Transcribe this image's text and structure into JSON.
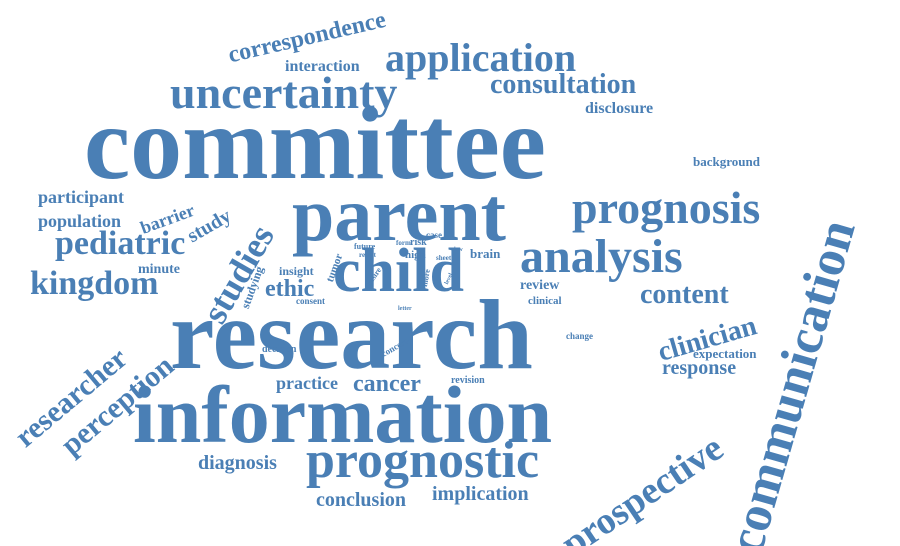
{
  "accent_color": "#4a7fb5",
  "words": {
    "committee": "committee",
    "research": "research",
    "information": "information",
    "communication": "communication",
    "parent": "parent",
    "child": "child",
    "prognostic": "prognostic",
    "uncertainty": "uncertainty",
    "application": "application",
    "prognosis": "prognosis",
    "analysis": "analysis",
    "prospective": "prospective",
    "kingdom": "kingdom",
    "pediatric": "pediatric",
    "studies": "studies",
    "perception": "perception",
    "researcher": "researcher",
    "clinician": "clinician",
    "content": "content",
    "cancer": "cancer",
    "consultation": "consultation",
    "correspondence": "correspondence",
    "diagnosis": "diagnosis",
    "conclusion": "conclusion",
    "implication": "implication",
    "response": "response",
    "practice": "practice",
    "ethic": "ethic",
    "population": "population",
    "participant": "participant",
    "study": "study",
    "barrier": "barrier",
    "interaction": "interaction",
    "disclosure": "disclosure",
    "background": "background",
    "expectation": "expectation",
    "minute": "minute",
    "insight": "insight",
    "review": "review",
    "brain": "brain",
    "high": "high",
    "clinical": "clinical",
    "decision": "decision",
    "revision": "revision",
    "change": "change",
    "concern": "concern",
    "studying": "studying",
    "tumor": "tumor",
    "consent": "consent",
    "future": "future",
    "result": "result",
    "desire": "desire",
    "form": "form",
    "risk": "risk",
    "case": "case",
    "sheet": "sheet",
    "view": "view",
    "level": "level",
    "more": "more",
    "letter": "letter"
  }
}
